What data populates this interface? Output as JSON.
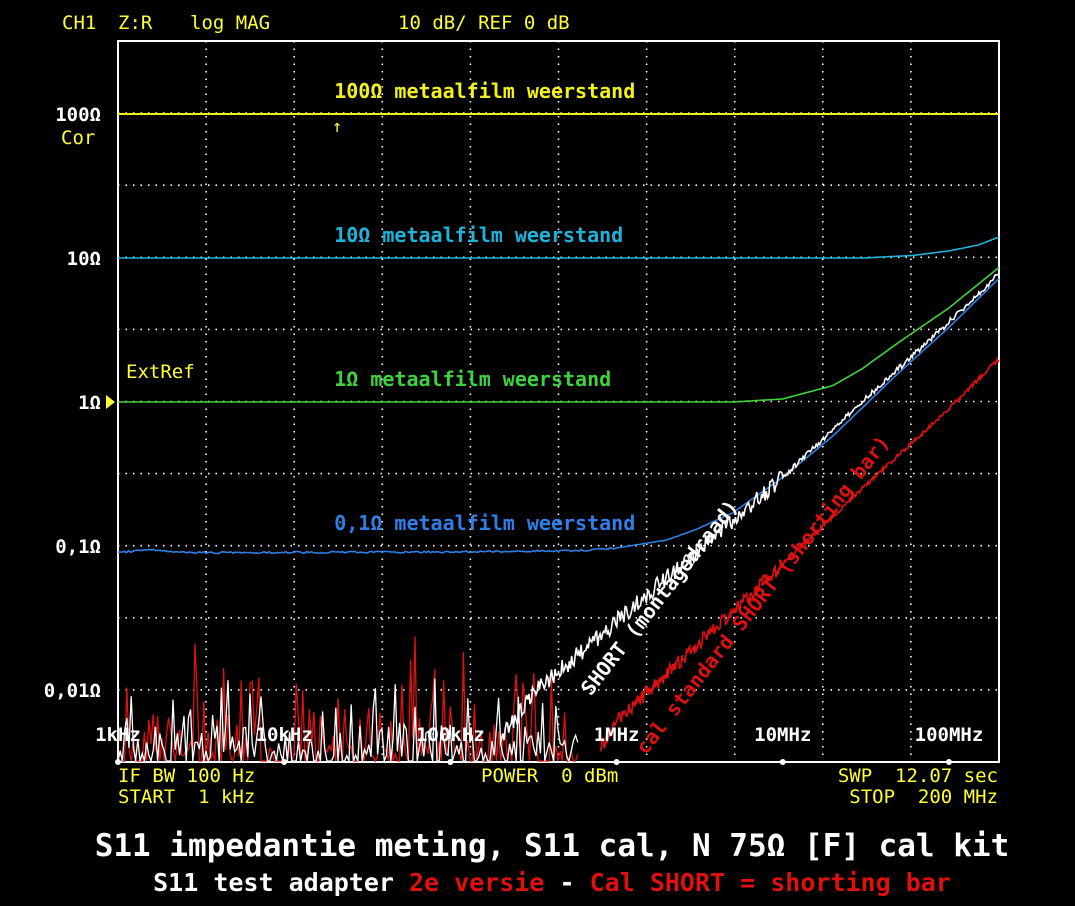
{
  "header": {
    "channel": "CH1",
    "param": "Z:R",
    "format": "log MAG",
    "scale": "10 dB/ REF 0 dB"
  },
  "left_labels": {
    "cor": "Cor",
    "extref": "ExtRef"
  },
  "footer": {
    "ifbw": "IF BW 100 Hz",
    "start": "START  1 kHz",
    "power": "POWER  0 dBm",
    "swp": "SWP  12.07 sec",
    "stop": "STOP  200 MHz"
  },
  "caption": {
    "line1": "S11 impedantie meting, S11 cal, N 75Ω [F] cal kit",
    "line2_a": "S11 test adapter ",
    "line2_b": "2e versie",
    "line2_c": " - ",
    "line2_d": "Cal SHORT = shorting bar"
  },
  "colors": {
    "background": "#000000",
    "grid": "#ffffff",
    "header_text": "#ffff33",
    "yellow": "#f2f21a",
    "cyan": "#1fb3dc",
    "green": "#3ed23e",
    "blue": "#2e7fe8",
    "white": "#ffffff",
    "red": "#e01010"
  },
  "chart_data": {
    "type": "line",
    "x_scale": "log",
    "y_scale": "log",
    "xlim": [
      1000,
      200000000
    ],
    "ylim_decades": [
      -2.35,
      2.5
    ],
    "x_tick_labels": [
      {
        "value": 1000,
        "label": "1kHz"
      },
      {
        "value": 10000,
        "label": "10kHz"
      },
      {
        "value": 100000,
        "label": "100kHz"
      },
      {
        "value": 1000000,
        "label": "1MHz"
      },
      {
        "value": 10000000,
        "label": "10MHz"
      },
      {
        "value": 100000000,
        "label": "100MHz"
      }
    ],
    "y_tick_labels": [
      {
        "value": 100,
        "label": "100Ω"
      },
      {
        "value": 10,
        "label": "10Ω"
      },
      {
        "value": 1,
        "label": "1Ω"
      },
      {
        "value": 0.1,
        "label": "0,1Ω"
      },
      {
        "value": 0.01,
        "label": "0,01Ω"
      }
    ],
    "series": [
      {
        "name": "100Ω metaalfilm weerstand",
        "color_key": "yellow",
        "noise": 0,
        "points": [
          [
            1000,
            100
          ],
          [
            200000000,
            100
          ]
        ]
      },
      {
        "name": "10Ω metaalfilm weerstand",
        "color_key": "cyan",
        "noise": 0,
        "points": [
          [
            1000,
            10
          ],
          [
            30000000,
            10
          ],
          [
            60000000,
            10.4
          ],
          [
            100000000,
            11.2
          ],
          [
            150000000,
            12.3
          ],
          [
            200000000,
            14
          ]
        ]
      },
      {
        "name": "1Ω metaalfilm weerstand",
        "color_key": "green",
        "noise": 0,
        "points": [
          [
            1000,
            1
          ],
          [
            5000000,
            1
          ],
          [
            10000000,
            1.05
          ],
          [
            20000000,
            1.3
          ],
          [
            30000000,
            1.7
          ],
          [
            50000000,
            2.6
          ],
          [
            100000000,
            4.5
          ],
          [
            200000000,
            8.6
          ]
        ]
      },
      {
        "name": "0,1Ω metaalfilm weerstand",
        "color_key": "blue",
        "noise": 0.006,
        "points": [
          [
            1000,
            0.09
          ],
          [
            1500,
            0.094
          ],
          [
            3000,
            0.09
          ],
          [
            100000,
            0.091
          ],
          [
            600000,
            0.093
          ],
          [
            1000000,
            0.097
          ],
          [
            2000000,
            0.11
          ],
          [
            3000000,
            0.13
          ],
          [
            5000000,
            0.17
          ],
          [
            10000000,
            0.3
          ],
          [
            20000000,
            0.58
          ],
          [
            50000000,
            1.6
          ],
          [
            100000000,
            3.3
          ],
          [
            200000000,
            7.2
          ]
        ]
      },
      {
        "name": "SHORT (montagedraad)",
        "color_key": "white",
        "noise": 0.06,
        "points": [
          [
            200000,
            0.0045
          ],
          [
            300000,
            0.009
          ],
          [
            600000,
            0.018
          ],
          [
            1000000,
            0.03
          ],
          [
            3000000,
            0.09
          ],
          [
            10000000,
            0.3
          ],
          [
            30000000,
            1
          ],
          [
            100000000,
            3.6
          ],
          [
            200000000,
            7.8
          ]
        ]
      },
      {
        "name": "cal standard SHORT (shorting bar)",
        "color_key": "red",
        "noise": 0.05,
        "points": [
          [
            800000,
            0.004
          ],
          [
            1000000,
            0.006
          ],
          [
            2000000,
            0.013
          ],
          [
            5000000,
            0.035
          ],
          [
            10000000,
            0.075
          ],
          [
            30000000,
            0.25
          ],
          [
            100000000,
            0.9
          ],
          [
            200000000,
            2
          ]
        ]
      }
    ],
    "noise_floor": {
      "xmax": 600000,
      "color_keys": [
        "red",
        "white"
      ]
    },
    "annotations": [
      {
        "text": "100Ω metaalfilm weerstand",
        "color_key": "yellow",
        "x_at": 20000,
        "y_at": 100,
        "offset": -16
      },
      {
        "text": "10Ω metaalfilm weerstand",
        "color_key": "cyan",
        "x_at": 20000,
        "y_at": 10,
        "offset": -16
      },
      {
        "text": "1Ω metaalfilm weerstand",
        "color_key": "green",
        "x_at": 20000,
        "y_at": 1,
        "offset": -16
      },
      {
        "text": "0,1Ω metaalfilm weerstand",
        "color_key": "blue",
        "x_at": 20000,
        "y_at": 0.1,
        "offset": -16
      },
      {
        "text": "SHORT (montagedraad)",
        "color_key": "white",
        "rotated": true,
        "x_at": 700000,
        "y_at": 0.009
      },
      {
        "text": "cal standard SHORT (shorting bar)",
        "color_key": "red",
        "rotated": true,
        "x_at": 1500000,
        "y_at": 0.0035
      }
    ]
  }
}
